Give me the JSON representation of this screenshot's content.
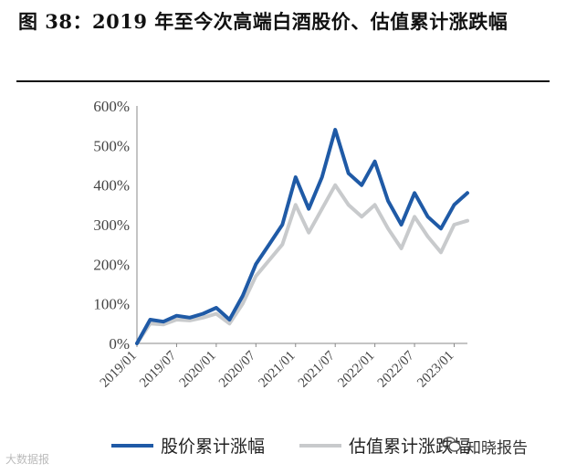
{
  "figure": {
    "title": "图 38：2019 年至今次高端白酒股价、估值累计涨跌幅"
  },
  "footer": {
    "left_watermark": "大数据报",
    "right_watermark": "知晓报告",
    "wechat_icon": "wechat-icon"
  },
  "colors": {
    "stock": "#1f5aa6",
    "valuation": "#c8cacc"
  },
  "chart_data": {
    "type": "line",
    "title": "",
    "xlabel": "",
    "ylabel": "",
    "ylim": [
      0,
      600
    ],
    "yticks": [
      "0%",
      "100%",
      "200%",
      "300%",
      "400%",
      "500%",
      "600%"
    ],
    "xticks": [
      "2019/01",
      "2019/07",
      "2020/01",
      "2020/07",
      "2021/01",
      "2021/07",
      "2022/01",
      "2022/07",
      "2023/01"
    ],
    "grid": false,
    "legend": "bottom",
    "x": [
      "2019/01",
      "2019/03",
      "2019/05",
      "2019/07",
      "2019/09",
      "2019/11",
      "2020/01",
      "2020/03",
      "2020/05",
      "2020/07",
      "2020/09",
      "2020/11",
      "2021/01",
      "2021/03",
      "2021/05",
      "2021/07",
      "2021/09",
      "2021/11",
      "2022/01",
      "2022/03",
      "2022/05",
      "2022/07",
      "2022/09",
      "2022/11",
      "2023/01",
      "2023/03"
    ],
    "series": [
      {
        "name": "股价累计涨幅",
        "values": [
          0,
          60,
          55,
          70,
          65,
          75,
          90,
          60,
          120,
          200,
          250,
          300,
          420,
          340,
          420,
          540,
          430,
          400,
          460,
          360,
          300,
          380,
          320,
          290,
          350,
          380
        ]
      },
      {
        "name": "估值累计涨跌幅",
        "values": [
          0,
          50,
          48,
          60,
          58,
          65,
          75,
          50,
          100,
          170,
          210,
          250,
          350,
          280,
          340,
          400,
          350,
          320,
          350,
          290,
          240,
          320,
          270,
          230,
          300,
          310
        ]
      }
    ]
  }
}
